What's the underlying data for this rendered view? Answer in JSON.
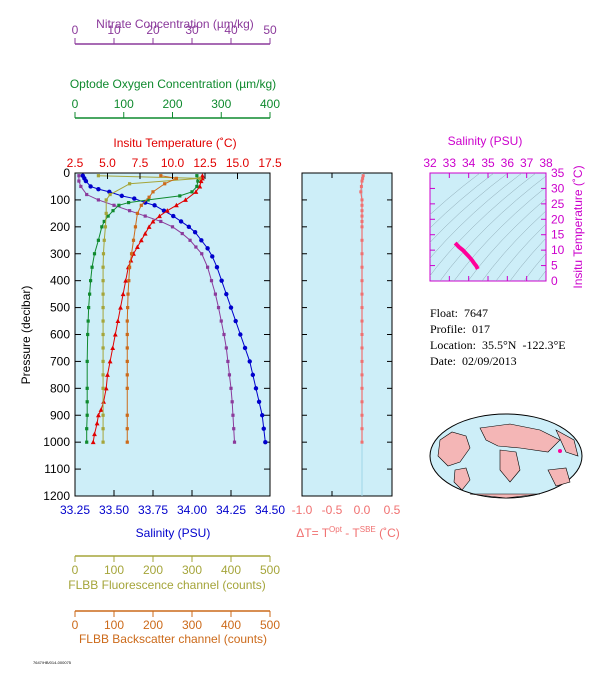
{
  "colors": {
    "nitrate": "#8b3a9b",
    "oxygen": "#0f8a2e",
    "temperature": "#e00000",
    "salinity": "#0000cc",
    "fluorescence": "#a5a53a",
    "backscatter": "#cc6a1a",
    "delta_t": "#f07070",
    "ts_axis": "#cc00cc",
    "ts_line": "#ff0099",
    "plot_bg": "#cdeef8",
    "land": "#f4b6b6"
  },
  "info": {
    "float": "Float:  7647",
    "profile": "Profile:  017",
    "location": "Location:  35.5°N  -122.3°E",
    "date": "Date:  02/09/2013"
  },
  "footer_code": "7647/HB/014-000075",
  "chart_data": [
    {
      "type": "line",
      "panel": "profile",
      "y_axis": {
        "label": "Pressure (decibar)",
        "range": [
          0,
          1200
        ],
        "inverted": true,
        "ticks": [
          0,
          100,
          200,
          300,
          400,
          500,
          600,
          700,
          800,
          900,
          1000,
          1100,
          1200
        ]
      },
      "axes": {
        "nitrate": {
          "label": "Nitrate Concentration (µm/kg)",
          "range": [
            0,
            50
          ],
          "ticks": [
            0,
            10,
            20,
            30,
            40,
            50
          ]
        },
        "oxygen": {
          "label": "Optode Oxygen Concentration (µm/kg)",
          "range": [
            0,
            400
          ],
          "ticks": [
            0,
            100,
            200,
            300,
            400
          ]
        },
        "temperature": {
          "label": "Insitu Temperature (˚C)",
          "range": [
            2.5,
            17.5
          ],
          "ticks": [
            "2.5",
            "5.0",
            "7.5",
            "10.0",
            "12.5",
            "15.0",
            "17.5"
          ]
        },
        "salinity": {
          "label": "Salinity (PSU)",
          "range": [
            33.25,
            34.5
          ],
          "ticks": [
            "33.25",
            "33.50",
            "33.75",
            "34.00",
            "34.25",
            "34.50"
          ]
        },
        "fluorescence": {
          "label": "FLBB Fluorescence channel (counts)",
          "range": [
            0,
            500
          ],
          "ticks": [
            0,
            100,
            200,
            300,
            400,
            500
          ]
        },
        "backscatter": {
          "label": "FLBB Backscatter channel (counts)",
          "range": [
            0,
            500
          ],
          "ticks": [
            0,
            100,
            200,
            300,
            400,
            500
          ]
        }
      },
      "series": [
        {
          "axis": "salinity",
          "marker": "circle",
          "x": [
            33.3,
            33.31,
            33.32,
            33.35,
            33.4,
            33.47,
            33.55,
            33.63,
            33.7,
            33.76,
            33.82,
            33.88,
            33.93,
            33.98,
            34.02,
            34.06,
            34.1,
            34.13,
            34.16,
            34.19,
            34.22,
            34.25,
            34.28,
            34.31,
            34.34,
            34.37,
            34.39,
            34.41,
            34.43,
            34.45,
            34.46,
            34.47
          ],
          "y": [
            10,
            20,
            30,
            50,
            60,
            70,
            85,
            95,
            110,
            120,
            140,
            160,
            180,
            200,
            220,
            250,
            280,
            310,
            350,
            400,
            450,
            500,
            550,
            600,
            650,
            700,
            750,
            800,
            850,
            900,
            950,
            1000
          ]
        },
        {
          "axis": "temperature",
          "marker": "triangle",
          "x": [
            12.3,
            12.3,
            12.2,
            12.1,
            11.8,
            11.0,
            10.3,
            9.6,
            9.0,
            8.5,
            8.2,
            7.9,
            7.6,
            7.3,
            7.0,
            6.8,
            6.6,
            6.4,
            6.2,
            6.0,
            5.8,
            5.6,
            5.4,
            5.2,
            5.0,
            4.9,
            4.7,
            4.5,
            4.3,
            4.2,
            4.0,
            3.9
          ],
          "y": [
            10,
            20,
            30,
            50,
            70,
            100,
            120,
            140,
            160,
            180,
            200,
            225,
            250,
            275,
            300,
            325,
            350,
            400,
            450,
            500,
            550,
            600,
            650,
            700,
            750,
            800,
            850,
            880,
            900,
            930,
            970,
            1000
          ]
        },
        {
          "axis": "nitrate",
          "marker": "square",
          "x": [
            1,
            1,
            1.5,
            3,
            6,
            10,
            14,
            18,
            22,
            25,
            27.5,
            29.5,
            31,
            32.5,
            34,
            35,
            36,
            36.8,
            37.5,
            38.2,
            38.8,
            39.2,
            39.6,
            40,
            40.3,
            40.5,
            40.7,
            40.9
          ],
          "y": [
            10,
            30,
            50,
            80,
            100,
            120,
            140,
            160,
            180,
            200,
            225,
            250,
            275,
            300,
            350,
            400,
            450,
            500,
            550,
            600,
            650,
            700,
            750,
            800,
            850,
            900,
            950,
            1000
          ]
        },
        {
          "axis": "oxygen",
          "marker": "square",
          "x": [
            250,
            252,
            250,
            240,
            215,
            150,
            110,
            90,
            78,
            68,
            60,
            55,
            48,
            40,
            35,
            32,
            30,
            28,
            27,
            26,
            25,
            25,
            25,
            25,
            24,
            24
          ],
          "y": [
            10,
            30,
            50,
            70,
            85,
            100,
            110,
            120,
            140,
            160,
            180,
            200,
            250,
            300,
            350,
            400,
            450,
            500,
            550,
            600,
            700,
            800,
            850,
            900,
            950,
            1000
          ]
        },
        {
          "axis": "fluorescence",
          "marker": "square",
          "x": [
            60,
            320,
            140,
            90,
            80,
            80,
            78,
            75,
            73,
            72,
            72,
            72,
            72,
            72,
            72,
            72,
            72,
            72,
            72,
            72,
            72,
            72
          ],
          "y": [
            10,
            20,
            40,
            80,
            100,
            150,
            200,
            250,
            300,
            350,
            400,
            450,
            500,
            550,
            600,
            650,
            700,
            750,
            800,
            900,
            950,
            1000
          ]
        },
        {
          "axis": "backscatter",
          "marker": "square",
          "x": [
            220,
            260,
            230,
            200,
            190,
            170,
            160,
            155,
            150,
            145,
            140,
            138,
            136,
            135,
            134,
            134,
            134,
            134,
            134,
            134,
            134,
            134,
            134
          ],
          "y": [
            10,
            20,
            40,
            70,
            90,
            120,
            150,
            200,
            250,
            300,
            350,
            400,
            450,
            500,
            550,
            600,
            650,
            700,
            750,
            800,
            900,
            950,
            1000
          ]
        }
      ]
    },
    {
      "type": "line",
      "panel": "delta_t",
      "x_axis": {
        "label": "ΔT= T",
        "label_sup1": "Opt",
        "label_mid": " - T",
        "label_sup2": "SBE",
        "label_end": " (˚C)",
        "range": [
          -1.0,
          0.5
        ],
        "ticks": [
          "-1.0",
          "-0.5",
          "0.0",
          "0.5"
        ]
      },
      "series": [
        {
          "x": [
            0.02,
            0.01,
            0.0,
            -0.01,
            -0.02,
            0.0,
            0.0,
            0.0,
            0.0,
            0.0,
            0.0,
            0.0,
            0.0,
            0.0,
            0.0,
            0.0,
            0.0,
            0.0,
            0.0,
            0.0,
            0.0,
            0.0,
            0.0,
            0.0,
            0.0,
            0.0,
            0.0
          ],
          "y": [
            10,
            20,
            30,
            50,
            70,
            100,
            120,
            140,
            160,
            180,
            200,
            250,
            300,
            350,
            400,
            450,
            500,
            550,
            600,
            650,
            700,
            750,
            800,
            850,
            900,
            950,
            1000
          ]
        }
      ]
    },
    {
      "type": "line",
      "panel": "ts_diagram",
      "x_axis": {
        "label": "Salinity (PSU)",
        "range": [
          32,
          38
        ],
        "ticks": [
          32,
          33,
          34,
          35,
          36,
          37,
          38
        ]
      },
      "y_axis": {
        "label": "Insitu Temperature (˚C)",
        "range": [
          0,
          35
        ],
        "ticks": [
          0,
          5,
          10,
          15,
          20,
          25,
          30,
          35
        ]
      },
      "series": [
        {
          "x": [
            33.3,
            33.35,
            33.5,
            33.7,
            33.85,
            34.0,
            34.1,
            34.2,
            34.3,
            34.4,
            34.47
          ],
          "y": [
            12.3,
            12.0,
            11.0,
            10.0,
            9.0,
            8.0,
            7.3,
            6.5,
            5.6,
            4.8,
            3.9
          ]
        }
      ]
    }
  ]
}
